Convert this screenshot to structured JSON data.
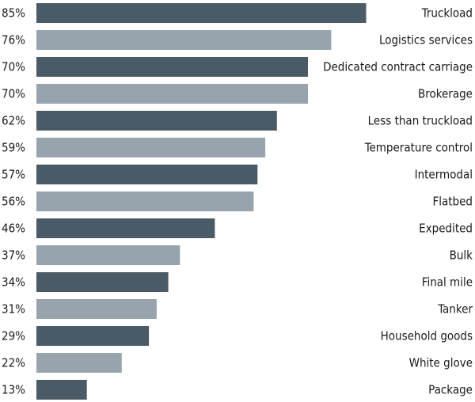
{
  "chart_data": {
    "type": "bar",
    "orientation": "horizontal",
    "categories": [
      "Truckload",
      "Logistics services",
      "Dedicated contract carriage",
      "Brokerage",
      "Less than truckload",
      "Temperature control",
      "Intermodal",
      "Flatbed",
      "Expedited",
      "Bulk",
      "Final mile",
      "Tanker",
      "Household goods",
      "White glove",
      "Package"
    ],
    "values": [
      85,
      76,
      70,
      70,
      62,
      59,
      57,
      56,
      46,
      37,
      34,
      31,
      29,
      22,
      13
    ],
    "value_labels": [
      "85%",
      "76%",
      "70%",
      "70%",
      "62%",
      "59%",
      "57%",
      "56%",
      "46%",
      "37%",
      "34%",
      "31%",
      "29%",
      "22%",
      "13%"
    ],
    "xlim": [
      0,
      100
    ],
    "grid": false,
    "legend": "none",
    "colors": {
      "dark": "#4a5a67",
      "light": "#97a4ae"
    }
  }
}
